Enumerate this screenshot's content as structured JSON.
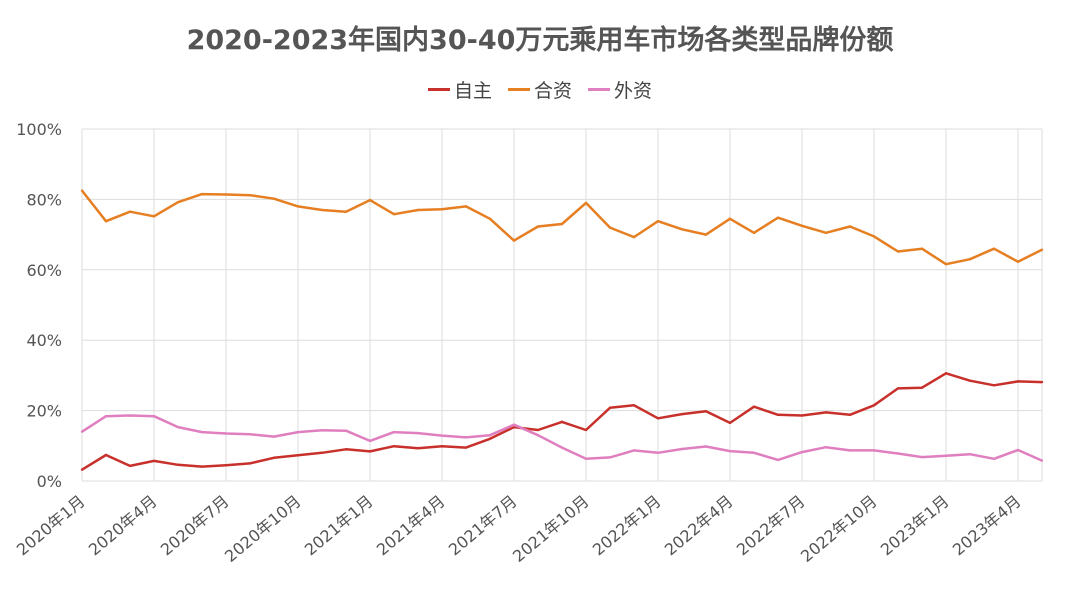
{
  "chart_data": {
    "type": "line",
    "title": "2020-2023年国内30-40万元乘用车市场各类型品牌份额",
    "xlabel": "",
    "ylabel": "",
    "ylim": [
      0,
      100
    ],
    "yticks": [
      "0%",
      "20%",
      "40%",
      "60%",
      "80%",
      "100%"
    ],
    "grid": true,
    "legend_position": "top",
    "x": [
      "2020年1月",
      "2020年2月",
      "2020年3月",
      "2020年4月",
      "2020年5月",
      "2020年6月",
      "2020年7月",
      "2020年8月",
      "2020年9月",
      "2020年10月",
      "2020年11月",
      "2020年12月",
      "2021年1月",
      "2021年2月",
      "2021年3月",
      "2021年4月",
      "2021年5月",
      "2021年6月",
      "2021年7月",
      "2021年8月",
      "2021年9月",
      "2021年10月",
      "2021年11月",
      "2021年12月",
      "2022年1月",
      "2022年2月",
      "2022年3月",
      "2022年4月",
      "2022年5月",
      "2022年6月",
      "2022年7月",
      "2022年8月",
      "2022年9月",
      "2022年10月",
      "2022年11月",
      "2022年12月",
      "2023年1月",
      "2023年2月",
      "2023年3月",
      "2023年4月",
      "2023年5月"
    ],
    "xtick_labels": [
      "2020年1月",
      "2020年4月",
      "2020年7月",
      "2020年10月",
      "2021年1月",
      "2021年4月",
      "2021年7月",
      "2021年10月",
      "2022年1月",
      "2022年4月",
      "2022年7月",
      "2022年10月",
      "2023年1月",
      "2023年4月"
    ],
    "series": [
      {
        "name": "自主",
        "color": "#c8312b",
        "values": [
          3.2,
          7.4,
          4.3,
          5.7,
          4.6,
          4.1,
          4.5,
          5.0,
          6.6,
          7.3,
          8.0,
          9.0,
          8.4,
          9.9,
          9.3,
          9.9,
          9.5,
          12.0,
          15.3,
          14.5,
          16.8,
          14.5,
          20.8,
          21.5,
          17.8,
          19.0,
          19.8,
          16.5,
          21.1,
          18.8,
          18.6,
          19.5,
          18.8,
          21.5,
          26.3,
          26.5,
          30.6,
          28.5,
          27.2,
          28.3,
          28.1
        ]
      },
      {
        "name": "合资",
        "color": "#e67e22",
        "values": [
          82.5,
          73.8,
          76.5,
          75.2,
          79.2,
          81.5,
          81.4,
          81.2,
          80.2,
          78.0,
          77.0,
          76.5,
          79.8,
          75.8,
          77.0,
          77.2,
          78.0,
          74.5,
          68.3,
          72.3,
          73.0,
          79.0,
          72.0,
          69.3,
          73.8,
          71.5,
          70.0,
          74.5,
          70.5,
          74.8,
          72.5,
          70.5,
          72.3,
          69.5,
          65.2,
          66.0,
          61.6,
          63.0,
          66.0,
          62.3,
          65.7
        ]
      },
      {
        "name": "外资",
        "color": "#e07fbf",
        "values": [
          14.0,
          18.4,
          18.6,
          18.4,
          15.3,
          13.9,
          13.5,
          13.3,
          12.6,
          13.9,
          14.4,
          14.3,
          11.4,
          13.9,
          13.6,
          12.9,
          12.4,
          13.0,
          16.0,
          13.0,
          9.5,
          6.3,
          6.7,
          8.7,
          8.0,
          9.1,
          9.8,
          8.5,
          8.0,
          6.0,
          8.2,
          9.6,
          8.7,
          8.7,
          7.8,
          6.8,
          7.2,
          7.6,
          6.3,
          8.8,
          5.8
        ]
      }
    ]
  }
}
